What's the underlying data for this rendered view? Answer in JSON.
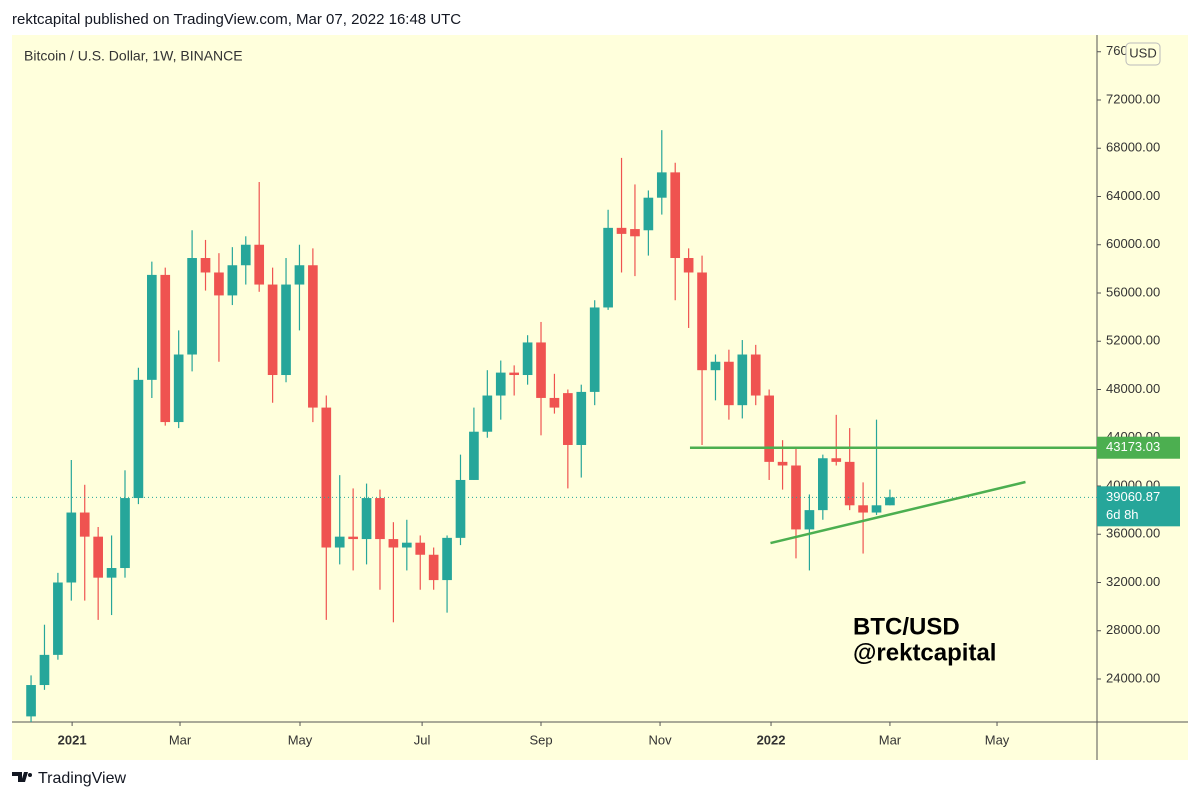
{
  "header": {
    "title": "rektcapital published on TradingView.com, Mar 07, 2022 16:48 UTC"
  },
  "footer": {
    "brand": "TradingView"
  },
  "chart_data": {
    "type": "candlestick",
    "title": "Bitcoin / U.S. Dollar, 1W, BINANCE",
    "currency": "USD",
    "up_color": "#26a69a",
    "down_color": "#ef5350",
    "open": [
      20900,
      23500,
      26000,
      32000,
      37800,
      35800,
      32400,
      33200,
      39000,
      48800,
      57500,
      45300,
      50900,
      58900,
      57700,
      55800,
      58300,
      60000,
      56700,
      49200,
      56700,
      58300,
      46500,
      34900,
      35800,
      35600,
      39000,
      35600,
      34900,
      35300,
      34300,
      32200,
      35700,
      40500,
      44500,
      47500,
      49400,
      49200,
      51900,
      47300,
      47700,
      43400,
      47800,
      54800,
      61400,
      61300,
      61200,
      63900,
      66000,
      58900,
      57700,
      49600,
      50300,
      46700,
      50900,
      47500,
      42000,
      41700,
      36400,
      38000,
      42300,
      42000,
      38400,
      37800,
      38400
    ],
    "high": [
      24300,
      28500,
      32800,
      42150,
      40100,
      36600,
      35900,
      41300,
      49800,
      58600,
      58100,
      52900,
      61200,
      60400,
      59300,
      59800,
      60700,
      65200,
      58100,
      58900,
      60000,
      59700,
      47500,
      40900,
      39800,
      40200,
      39700,
      37000,
      37200,
      35900,
      34900,
      35900,
      42600,
      46500,
      49600,
      50400,
      50000,
      52500,
      53600,
      49300,
      48000,
      48400,
      55400,
      62900,
      67200,
      65000,
      64500,
      69500,
      66800,
      59700,
      59100,
      50900,
      51300,
      52100,
      51700,
      48000,
      43800,
      43100,
      39300,
      42600,
      45900,
      44800,
      40300,
      45500,
      39700
    ],
    "low": [
      19500,
      23100,
      25600,
      30500,
      30500,
      28900,
      29300,
      32400,
      38500,
      47300,
      45000,
      44800,
      49500,
      56200,
      50300,
      55000,
      56700,
      56100,
      46900,
      48600,
      52900,
      45300,
      28900,
      33500,
      33000,
      33500,
      31400,
      28700,
      33000,
      31400,
      31400,
      29500,
      35100,
      40500,
      44000,
      45500,
      47500,
      48400,
      44200,
      46000,
      39800,
      40700,
      46700,
      54600,
      57700,
      57400,
      59100,
      62500,
      55400,
      53100,
      43400,
      47100,
      45500,
      45600,
      46700,
      40500,
      39700,
      34000,
      33000,
      37200,
      41700,
      38000,
      34400,
      37600,
      38400
    ],
    "close": [
      23500,
      26000,
      32000,
      37800,
      35800,
      32400,
      33200,
      39000,
      48800,
      57500,
      45300,
      50900,
      58900,
      57700,
      55800,
      58300,
      60000,
      56700,
      49200,
      56700,
      58300,
      46500,
      34900,
      35800,
      35600,
      39000,
      35600,
      34900,
      35300,
      34300,
      32200,
      35700,
      40500,
      44500,
      47500,
      49400,
      49200,
      51900,
      47300,
      46500,
      43400,
      47800,
      54800,
      61400,
      60900,
      60700,
      63900,
      66000,
      58900,
      57700,
      49600,
      50300,
      46700,
      50900,
      47500,
      42000,
      41700,
      36400,
      38000,
      42300,
      42000,
      38400,
      37800,
      38400,
      39060.87
    ],
    "xlim": [
      -1.42,
      79.43
    ],
    "xticks": [
      {
        "value": 3.06,
        "label": "2021"
      },
      {
        "value": 11.1,
        "label": "Mar"
      },
      {
        "value": 20.04,
        "label": "May"
      },
      {
        "value": 29.14,
        "label": "Jul"
      },
      {
        "value": 38.0,
        "label": "Sep"
      },
      {
        "value": 46.87,
        "label": "Nov"
      },
      {
        "value": 55.14,
        "label": "2022"
      },
      {
        "value": 64.0,
        "label": "Mar"
      },
      {
        "value": 71.98,
        "label": "May"
      }
    ],
    "ylim": [
      20435,
      77388
    ],
    "yticks": [
      {
        "value": 24000,
        "label": "24000.00"
      },
      {
        "value": 28000,
        "label": "28000.00"
      },
      {
        "value": 32000,
        "label": "32000.00"
      },
      {
        "value": 36000,
        "label": "36000.00"
      },
      {
        "value": 40000,
        "label": "40000.00"
      },
      {
        "value": 44000,
        "label": "44000.00"
      },
      {
        "value": 48000,
        "label": "48000.00"
      },
      {
        "value": 52000,
        "label": "52000.00"
      },
      {
        "value": 56000,
        "label": "56000.00"
      },
      {
        "value": 60000,
        "label": "60000.00"
      },
      {
        "value": 64000,
        "label": "64000.00"
      },
      {
        "value": 68000,
        "label": "68000.00"
      },
      {
        "value": 72000,
        "label": "72000.00"
      },
      {
        "value": 76000,
        "label": "76000.00"
      }
    ],
    "resistance": {
      "value": 43173.03,
      "start": 49.1,
      "color": "#4caf50"
    },
    "trendline": {
      "x": [
        55.1,
        74.1
      ],
      "y": [
        35270,
        40330
      ],
      "color": "#4caf50"
    },
    "last_price": {
      "value": 39060.87,
      "countdown": "6d 8h"
    },
    "annotation": [
      "BTC/USD",
      "@rektcapital"
    ]
  }
}
